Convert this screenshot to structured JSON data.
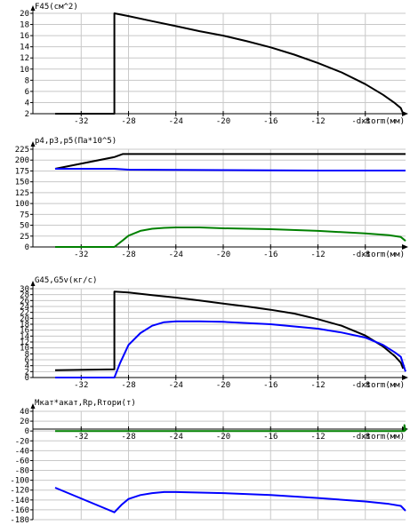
{
  "chart_data": [
    {
      "type": "line",
      "title": "F45(см^2)",
      "xlabel": "-dxtorm(мм)",
      "xlim": [
        -34.2,
        -4.6
      ],
      "ylim": [
        2,
        20
      ],
      "yticks": [
        2,
        4,
        6,
        8,
        10,
        12,
        14,
        16,
        18,
        20
      ],
      "xticks": [
        -32,
        -28,
        -24,
        -20,
        -16,
        -12,
        -8
      ],
      "grid": true,
      "series": [
        {
          "color": "#000000",
          "x": [
            -34.2,
            -29.2,
            -29.2,
            -28,
            -26,
            -24,
            -22,
            -20,
            -18,
            -16,
            -14,
            -12,
            -10,
            -8,
            -6.5,
            -5.5,
            -5,
            -4.8
          ],
          "y": [
            2,
            2,
            20,
            19.5,
            18.6,
            17.7,
            16.8,
            16.0,
            15.0,
            13.9,
            12.6,
            11.1,
            9.4,
            7.3,
            5.4,
            3.9,
            3.0,
            2.0
          ]
        }
      ]
    },
    {
      "type": "line",
      "title": "p4,p3,p5(Па*10^5)",
      "xlabel": "-dxtorm(мм)",
      "xlim": [
        -34.2,
        -4.6
      ],
      "ylim": [
        0,
        225
      ],
      "yticks": [
        0,
        25,
        50,
        75,
        100,
        125,
        150,
        175,
        200,
        225
      ],
      "xticks": [
        -32,
        -28,
        -24,
        -20,
        -16,
        -12,
        -8
      ],
      "grid": true,
      "series": [
        {
          "color": "#000000",
          "x": [
            -34.2,
            -29.2,
            -28.5,
            -4.6
          ],
          "y": [
            180,
            207,
            214,
            214
          ]
        },
        {
          "color": "#0000ff",
          "x": [
            -34.2,
            -29.2,
            -28,
            -20,
            -12,
            -6,
            -4.6
          ],
          "y": [
            180,
            180,
            178,
            177,
            176,
            176,
            176
          ]
        },
        {
          "color": "#008000",
          "x": [
            -34.2,
            -29.2,
            -28.5,
            -28,
            -27,
            -26,
            -25,
            -24,
            -22,
            -20,
            -16,
            -12,
            -8,
            -6,
            -5,
            -4.6
          ],
          "y": [
            0,
            0,
            15,
            26,
            37,
            42,
            44,
            45,
            45,
            43,
            41,
            37,
            31,
            27,
            23,
            14
          ]
        }
      ]
    },
    {
      "type": "line",
      "title": "G45,G5v(кг/с)",
      "xlabel": "-dxtorm(мм)",
      "xlim": [
        -34.2,
        -4.6
      ],
      "ylim": [
        0,
        30
      ],
      "yticks": [
        0,
        2,
        4,
        6,
        8,
        10,
        12,
        14,
        16,
        18,
        20,
        22,
        24,
        26,
        28,
        30
      ],
      "xticks": [
        -32,
        -28,
        -24,
        -20,
        -16,
        -12,
        -8
      ],
      "grid": true,
      "series": [
        {
          "color": "#000000",
          "x": [
            -34.2,
            -29.2,
            -29.2,
            -28,
            -26,
            -24,
            -22,
            -20,
            -18,
            -16,
            -14,
            -12,
            -10,
            -8,
            -6.5,
            -5.5,
            -5,
            -4.8
          ],
          "y": [
            2.5,
            2.8,
            29,
            28.7,
            27.8,
            27,
            26,
            25,
            24,
            22.9,
            21.6,
            19.7,
            17.5,
            14.2,
            10.5,
            7.2,
            5.0,
            3.0
          ]
        },
        {
          "color": "#0000ff",
          "x": [
            -34.2,
            -29.2,
            -28.7,
            -28,
            -27,
            -26,
            -25,
            -24,
            -22,
            -20,
            -16,
            -12,
            -10,
            -8,
            -6.5,
            -5.5,
            -5,
            -4.6
          ],
          "y": [
            0,
            0,
            5,
            11,
            15,
            17.5,
            18.7,
            19,
            19,
            18.8,
            18,
            16.5,
            15.2,
            13.5,
            11,
            8.5,
            7,
            2
          ]
        }
      ]
    },
    {
      "type": "line",
      "title": "Mкат*акат,Rp,Rтори(т)",
      "xlabel": "-dxtorm(мм)",
      "xlim": [
        -34.2,
        -4.6
      ],
      "ylim": [
        -180,
        40
      ],
      "yticks": [
        -180,
        -160,
        -140,
        -120,
        -100,
        -80,
        -60,
        -40,
        -20,
        0,
        20,
        40
      ],
      "xticks": [
        -32,
        -28,
        -24,
        -20,
        -16,
        -12,
        -8
      ],
      "grid": true,
      "series": [
        {
          "color": "#008000",
          "x": [
            -34.2,
            -4.8,
            -4.7,
            -4.7,
            -4.6
          ],
          "y": [
            0,
            0,
            0,
            12,
            0
          ]
        },
        {
          "color": "#0000ff",
          "x": [
            -34.2,
            -29.2,
            -28.6,
            -28,
            -27,
            -26,
            -25,
            -24,
            -22,
            -20,
            -16,
            -12,
            -8,
            -6,
            -5,
            -4.6
          ],
          "y": [
            -115,
            -165,
            -150,
            -138,
            -130,
            -126,
            -124,
            -124,
            -125,
            -126,
            -130,
            -136,
            -143,
            -148,
            -152,
            -162
          ]
        }
      ]
    }
  ],
  "colors": {
    "grid": "#c8c8c8",
    "axis": "#000000"
  }
}
